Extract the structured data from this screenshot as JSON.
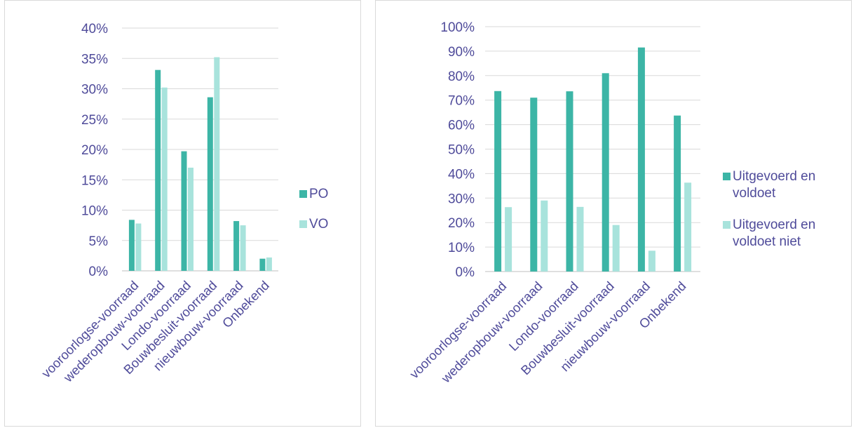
{
  "colors": {
    "series1": "#3cb5a6",
    "series2": "#a8e3dc",
    "text": "#4f4b9a"
  },
  "chart_data": [
    {
      "type": "bar",
      "title": "",
      "xlabel": "",
      "ylabel": "",
      "categories": [
        "vooroorlogse-voorraad",
        "wederopbouw-voorraad",
        "Londo-voorraad",
        "Bouwbesluit-voorraad",
        "nieuwbouw-voorraad",
        "Onbekend"
      ],
      "series": [
        {
          "name": "PO",
          "values": [
            8.4,
            33.1,
            19.7,
            28.6,
            8.2,
            2.0
          ]
        },
        {
          "name": "VO",
          "values": [
            7.8,
            30.2,
            17.0,
            35.2,
            7.5,
            2.2
          ]
        }
      ],
      "ylim": [
        0,
        40
      ],
      "yticks": [
        0,
        5,
        10,
        15,
        20,
        25,
        30,
        35,
        40
      ],
      "ytick_labels": [
        "0%",
        "5%",
        "10%",
        "15%",
        "20%",
        "25%",
        "30%",
        "35%",
        "40%"
      ],
      "grid": true,
      "legend_position": "right",
      "legend": [
        "PO",
        "VO"
      ]
    },
    {
      "type": "bar",
      "title": "",
      "xlabel": "",
      "ylabel": "",
      "categories": [
        "vooroorlogse-voorraad",
        "wederopbouw-voorraad",
        "Londo-voorraad",
        "Bouwbesluit-voorraad",
        "nieuwbouw-voorraad",
        "Onbekend"
      ],
      "series": [
        {
          "name": "Uitgevoerd en voldoet",
          "values": [
            73.7,
            71.0,
            73.6,
            81.0,
            91.5,
            63.7
          ]
        },
        {
          "name": "Uitgevoerd en voldoet niet",
          "values": [
            26.3,
            29.0,
            26.4,
            19.0,
            8.5,
            36.3
          ]
        }
      ],
      "ylim": [
        0,
        100
      ],
      "yticks": [
        0,
        10,
        20,
        30,
        40,
        50,
        60,
        70,
        80,
        90,
        100
      ],
      "ytick_labels": [
        "0%",
        "10%",
        "20%",
        "30%",
        "40%",
        "50%",
        "60%",
        "70%",
        "80%",
        "90%",
        "100%"
      ],
      "grid": true,
      "legend_position": "right",
      "legend": [
        [
          "Uitgevoerd en",
          "voldoet"
        ],
        [
          "Uitgevoerd en",
          "voldoet niet"
        ]
      ]
    }
  ]
}
